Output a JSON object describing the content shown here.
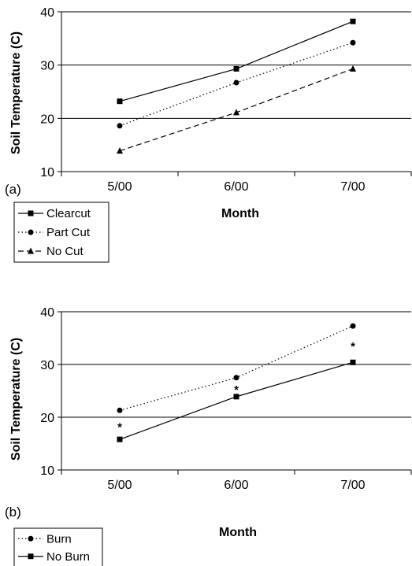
{
  "chart_data": [
    {
      "type": "line",
      "panel_label": "(a)",
      "xlabel": "Month",
      "ylabel": "Soil Temperature (C)",
      "categories": [
        "5/00",
        "6/00",
        "7/00"
      ],
      "ylim": [
        10,
        40
      ],
      "yticks": [
        "10",
        "20",
        "30",
        "40"
      ],
      "grid": "horizontal",
      "legend": "bottom-left",
      "series": [
        {
          "name": "Clearcut",
          "values": [
            23.2,
            29.3,
            38.2
          ],
          "style": "solid",
          "marker": "square"
        },
        {
          "name": "Part Cut",
          "values": [
            18.6,
            26.7,
            34.2
          ],
          "style": "dotted",
          "marker": "circle"
        },
        {
          "name": "No Cut",
          "values": [
            13.9,
            21.1,
            29.3
          ],
          "style": "dashed",
          "marker": "triangle"
        }
      ]
    },
    {
      "type": "line",
      "panel_label": "(b)",
      "xlabel": "Month",
      "ylabel": "Soil Temperature (C)",
      "categories": [
        "5/00",
        "6/00",
        "7/00"
      ],
      "ylim": [
        10,
        40
      ],
      "yticks": [
        "10",
        "20",
        "30",
        "40"
      ],
      "grid": "horizontal",
      "legend": "bottom-left",
      "series": [
        {
          "name": "Burn",
          "values": [
            21.3,
            27.5,
            37.3
          ],
          "style": "dotted",
          "marker": "circle"
        },
        {
          "name": "No Burn",
          "values": [
            15.8,
            23.9,
            30.4
          ],
          "style": "solid",
          "marker": "square"
        }
      ],
      "annotations": [
        "*",
        "*",
        "*"
      ]
    }
  ]
}
